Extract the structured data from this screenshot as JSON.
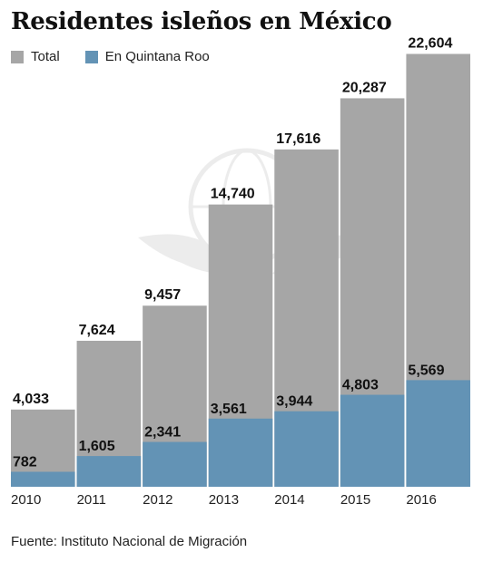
{
  "chart_data": {
    "type": "bar",
    "title": "Residentes isleños en México",
    "source": "Fuente: Instituto Nacional de Migración",
    "categories": [
      "2010",
      "2011",
      "2012",
      "2013",
      "2014",
      "2015",
      "2016"
    ],
    "series": [
      {
        "name": "Total",
        "color": "#a6a6a6",
        "values": [
          4033,
          7624,
          9457,
          14740,
          17616,
          20287,
          22604
        ],
        "labels": [
          "4,033",
          "7,624",
          "9,457",
          "14,740",
          "17,616",
          "20,287",
          "22,604"
        ]
      },
      {
        "name": "En Quintana Roo",
        "color": "#6393b5",
        "values": [
          782,
          1605,
          2341,
          3561,
          3944,
          4803,
          5569
        ],
        "labels": [
          "782",
          "1,605",
          "2,341",
          "3,561",
          "3,944",
          "4,803",
          "5,569"
        ]
      }
    ],
    "ylim": [
      0,
      24000
    ],
    "grid": false,
    "legend_position": "top-left",
    "watermark": "eagle-emblem"
  }
}
